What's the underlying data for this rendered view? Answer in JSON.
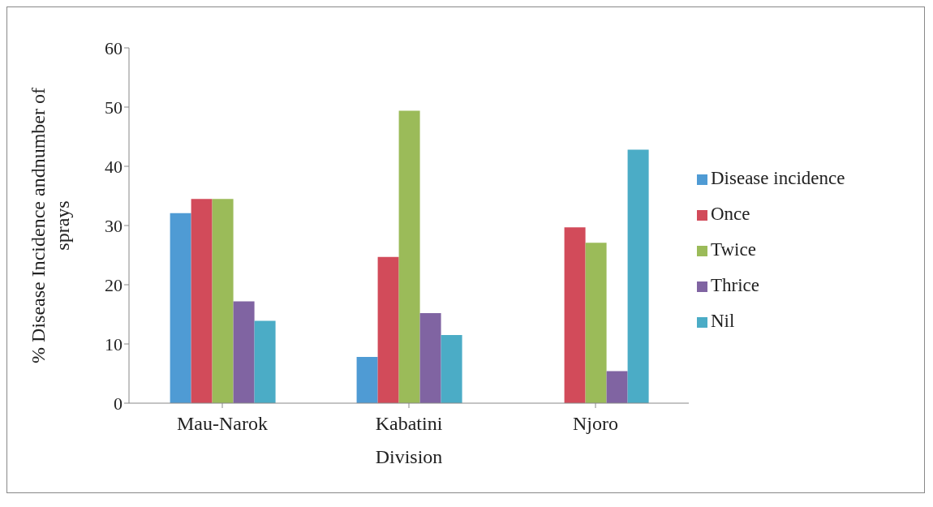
{
  "chart_data": {
    "type": "bar",
    "xlabel": "Division",
    "ylabel": "% Disease Incidence  andnumber of sprays",
    "categories": [
      "Mau-Narok",
      "Kabatini",
      "Njoro"
    ],
    "series": [
      {
        "name": "Disease incidence",
        "color": "#4f9bd4",
        "values": [
          32.1,
          7.8,
          0
        ]
      },
      {
        "name": "Once",
        "color": "#d24b5a",
        "values": [
          34.5,
          24.7,
          29.7
        ]
      },
      {
        "name": "Twice",
        "color": "#9bbb59",
        "values": [
          34.5,
          49.4,
          27.1
        ]
      },
      {
        "name": "Thrice",
        "color": "#8064a2",
        "values": [
          17.2,
          15.2,
          5.4
        ]
      },
      {
        "name": "Nil",
        "color": "#4bacc6",
        "values": [
          13.9,
          11.5,
          42.8
        ]
      }
    ],
    "ylim": [
      0,
      60
    ],
    "yticks": [
      0,
      10,
      20,
      30,
      40,
      50,
      60
    ],
    "grid": false,
    "legend": "right"
  }
}
